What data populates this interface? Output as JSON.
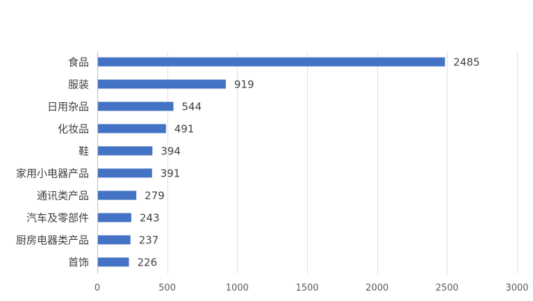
{
  "chart_data": {
    "type": "bar",
    "orientation": "horizontal",
    "categories": [
      "食品",
      "服装",
      "日用杂品",
      "化妆品",
      "鞋",
      "家用小电器产品",
      "通讯类产品",
      "汽车及零部件",
      "厨房电器类产品",
      "首饰"
    ],
    "values": [
      2485,
      919,
      544,
      491,
      394,
      391,
      279,
      243,
      237,
      226
    ],
    "xlim": [
      0,
      3000
    ],
    "xticks": [
      0,
      500,
      1000,
      1500,
      2000,
      2500,
      3000
    ],
    "grid": true,
    "legend": "none",
    "title": "",
    "xlabel": "",
    "ylabel": "",
    "colors": {
      "bar": "#4472C4",
      "grid": "#E0E0E0",
      "axis": "#BFBFBF",
      "text": "#404040"
    }
  }
}
